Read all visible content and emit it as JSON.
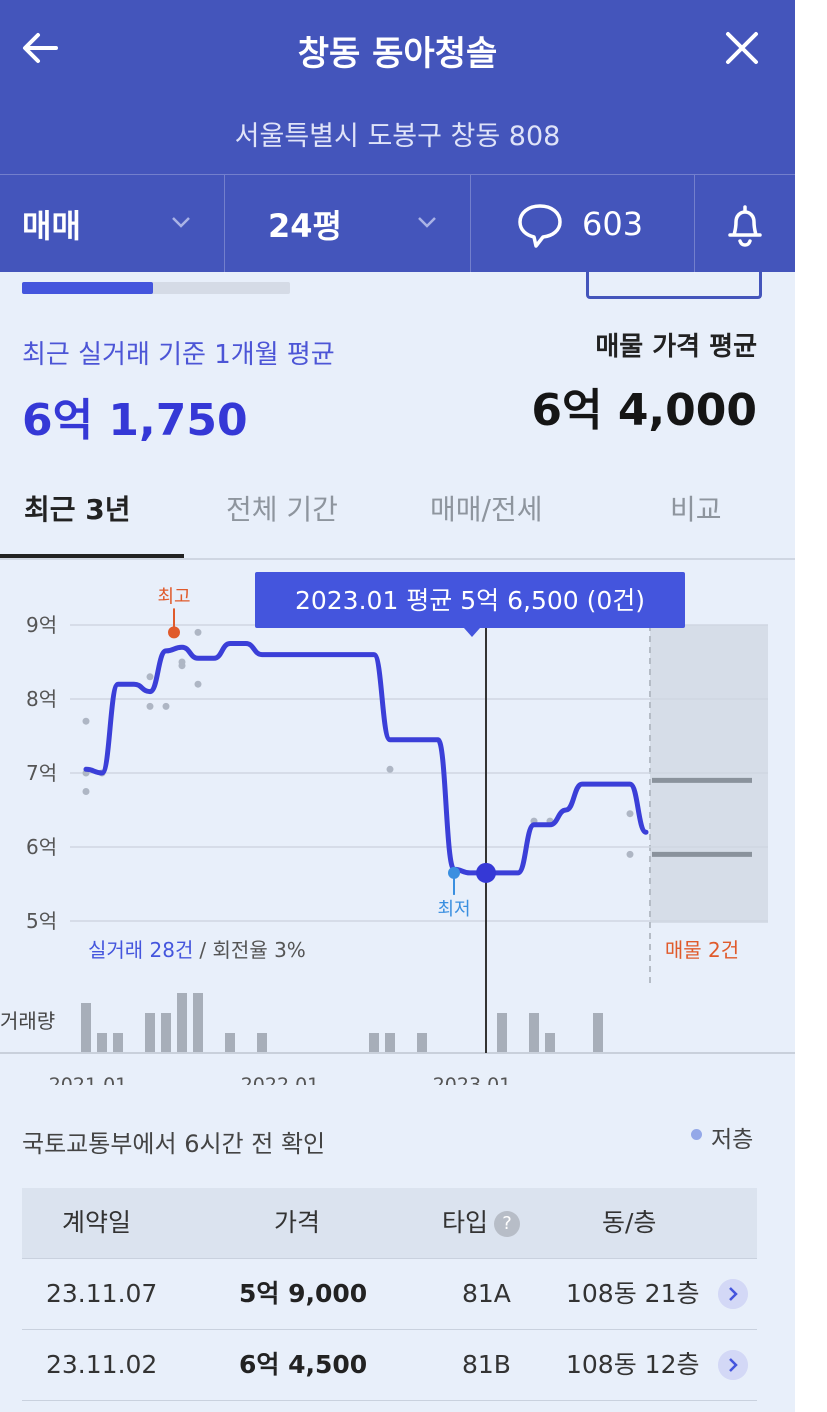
{
  "header": {
    "title": "창동 동아청솔",
    "address": "서울특별시 도봉구 창동 808",
    "deal_type": "매매",
    "size": "24평",
    "comments": "603"
  },
  "summary": {
    "recent_label": "최근 실거래 기준 1개월 평균",
    "recent_price": "6억 1,750",
    "listing_label": "매물 가격 평균",
    "listing_price": "6억 4,000",
    "progress": 0.49
  },
  "period_tabs": [
    {
      "label": "최근 3년",
      "active": true
    },
    {
      "label": "전체 기간",
      "active": false
    },
    {
      "label": "매매/전세",
      "active": false
    },
    {
      "label": "비교",
      "active": false
    }
  ],
  "chart_data": {
    "type": "line",
    "tooltip": "2023.01 평균 5억 6,500 (0건)",
    "y_ticks": [
      "9억",
      "8억",
      "7억",
      "6억",
      "5억"
    ],
    "ylim": [
      5,
      9
    ],
    "x_ticks": [
      "2021.01",
      "2022.01",
      "2023.01"
    ],
    "max_label": "최고",
    "min_label": "최저",
    "trades_label": "실거래 28건",
    "turnover_label": "/ 회전율 3%",
    "listing_label": "매물 2건",
    "volume_label": "거래량",
    "series": [
      {
        "x": [
          0,
          1,
          2,
          3,
          4,
          5,
          6,
          7,
          8,
          9,
          10,
          11,
          12,
          13,
          14,
          15,
          16,
          17,
          18,
          19,
          20,
          21,
          22,
          23,
          24,
          25,
          26,
          27,
          28,
          29,
          30,
          31,
          32,
          33,
          34,
          35
        ],
        "values": [
          7.05,
          7.0,
          8.2,
          8.2,
          8.1,
          8.65,
          8.7,
          8.55,
          8.55,
          8.75,
          8.75,
          8.6,
          8.6,
          8.6,
          8.6,
          8.6,
          8.6,
          8.6,
          8.6,
          7.45,
          7.45,
          7.45,
          7.45,
          5.7,
          5.65,
          5.65,
          5.65,
          5.65,
          6.3,
          6.3,
          6.5,
          6.85,
          6.85,
          6.85,
          6.85,
          6.2
        ]
      }
    ],
    "max_point": {
      "x": 5.5,
      "y": 8.9
    },
    "min_point": {
      "x": 23,
      "y": 5.65
    },
    "selected_point": {
      "x": 25,
      "y": 5.65
    },
    "scatter": [
      {
        "x": 0,
        "y": 7.7
      },
      {
        "x": 0,
        "y": 6.75
      },
      {
        "x": 0,
        "y": 7.0
      },
      {
        "x": 1,
        "y": 7.0
      },
      {
        "x": 4,
        "y": 8.3
      },
      {
        "x": 4,
        "y": 7.9
      },
      {
        "x": 5,
        "y": 7.9
      },
      {
        "x": 6,
        "y": 8.5
      },
      {
        "x": 6,
        "y": 8.45
      },
      {
        "x": 7,
        "y": 8.9
      },
      {
        "x": 7,
        "y": 8.2
      },
      {
        "x": 19,
        "y": 7.05
      },
      {
        "x": 28,
        "y": 6.35
      },
      {
        "x": 29,
        "y": 6.35
      },
      {
        "x": 34,
        "y": 6.45
      },
      {
        "x": 34,
        "y": 5.9
      }
    ],
    "listings": [
      6.9,
      5.9
    ],
    "volume": [
      5,
      2,
      2,
      0,
      4,
      4,
      6,
      6,
      0,
      2,
      0,
      2,
      0,
      0,
      0,
      0,
      0,
      0,
      2,
      2,
      0,
      2,
      0,
      0,
      0,
      0,
      4,
      0,
      4,
      2,
      0,
      0,
      4,
      0,
      0,
      0
    ]
  },
  "updated_text": "국토교통부에서 6시간 전 확인",
  "legend_low": "저층",
  "table": {
    "headers": [
      "계약일",
      "가격",
      "타입",
      "동/층"
    ],
    "help_glyph": "?",
    "rows": [
      {
        "date": "23.11.07",
        "price": "5억 9,000",
        "type": "81A",
        "dong": "108동 21층"
      },
      {
        "date": "23.11.02",
        "price": "6억 4,500",
        "type": "81B",
        "dong": "108동 12층"
      }
    ]
  },
  "colors": {
    "header_bg": "#4455bb",
    "accent": "#3538d6",
    "line": "#3b3fd8",
    "max_marker": "#e05a2b",
    "min_marker": "#3a8fe0",
    "listing": "#e05a2b"
  }
}
